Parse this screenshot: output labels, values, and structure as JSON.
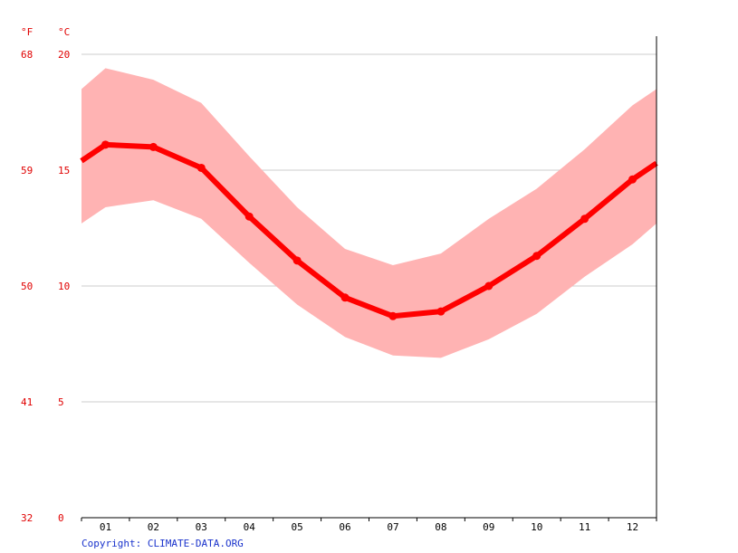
{
  "colors": {
    "line": "#ff0000",
    "band": "#ffb3b3",
    "grid": "#cccccc",
    "axis_text": "#e00000",
    "axis": "#000000",
    "copyright": "#1a33cc"
  },
  "copyright": "Copyright: CLIMATE-DATA.ORG",
  "chart_data": {
    "type": "line",
    "unit_labels": {
      "fahrenheit": "°F",
      "celsius": "°C"
    },
    "ylim": [
      0,
      20
    ],
    "yticks_c": [
      "20",
      "15",
      "10",
      "5",
      "0"
    ],
    "yticks_f": [
      "68",
      "59",
      "50",
      "41",
      "32"
    ],
    "categories": [
      "01",
      "02",
      "03",
      "04",
      "05",
      "06",
      "07",
      "08",
      "09",
      "10",
      "11",
      "12"
    ],
    "grid": true,
    "series": [
      {
        "role": "mean",
        "values": [
          16.1,
          16.0,
          15.1,
          13.0,
          11.1,
          9.5,
          8.7,
          8.9,
          10.0,
          11.3,
          12.9,
          14.6
        ]
      },
      {
        "role": "max",
        "values": [
          19.4,
          18.9,
          17.9,
          15.6,
          13.4,
          11.6,
          10.9,
          11.4,
          12.9,
          14.2,
          15.9,
          17.8
        ]
      },
      {
        "role": "min",
        "values": [
          13.4,
          13.7,
          12.9,
          11.0,
          9.2,
          7.8,
          7.0,
          6.9,
          7.7,
          8.8,
          10.4,
          11.8
        ]
      }
    ],
    "edge_values": {
      "mean_start": 15.4,
      "mean_end": 15.3,
      "max_start": 18.5,
      "max_end": 18.5,
      "min_start": 12.7,
      "min_end": 12.7
    }
  }
}
